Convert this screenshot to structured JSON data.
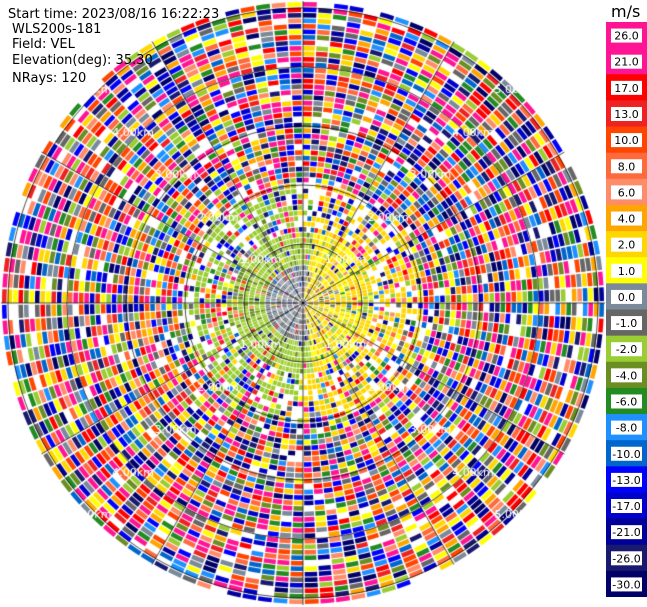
{
  "header": {
    "start_time": "Start time: 2023/08/16 16:22:23",
    "instrument": "WLS200s-181",
    "field": "Field: VEL",
    "elevation": "Elevation(deg): 35.30",
    "nrays": "NRays: 120"
  },
  "range_rings": {
    "labels": [
      "1.00km",
      "2.00km",
      "3.00km",
      "4.00km",
      "5.00km"
    ]
  },
  "colorbar": {
    "unit": "m/s",
    "tick_labels": [
      "26.0",
      "21.0",
      "17.0",
      "13.0",
      "10.0",
      "8.0",
      "6.0",
      "4.0",
      "2.0",
      "1.0",
      "0.0",
      "-1.0",
      "-2.0",
      "-4.0",
      "-6.0",
      "-8.0",
      "-10.0",
      "-13.0",
      "-17.0",
      "-21.0",
      "-26.0",
      "-30.0"
    ],
    "colors": [
      "#ff1493",
      "#ff1493",
      "#ff0000",
      "#ee2222",
      "#ff4500",
      "#ff6a3d",
      "#ff8c69",
      "#ffa500",
      "#ffd700",
      "#ffff00",
      "#7a8a9a",
      "#666666",
      "#9acd32",
      "#6b8e23",
      "#228b22",
      "#1e90ff",
      "#0066cc",
      "#0000ff",
      "#0000cd",
      "#000099",
      "#191970",
      "#000066"
    ]
  }
}
